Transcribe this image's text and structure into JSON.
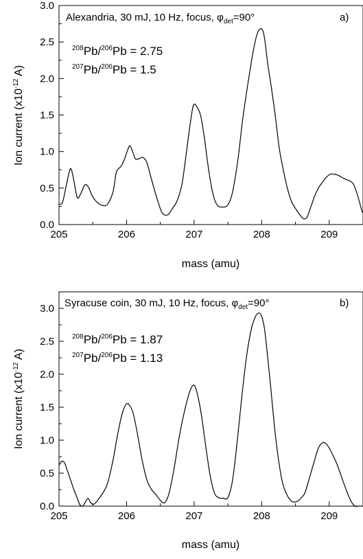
{
  "chart_data": [
    {
      "type": "line",
      "panel_label": "a)",
      "title": "Alexandria, 30 mJ, 10 Hz, focus, ",
      "title_phi": "φ",
      "title_phi_sub": "det",
      "title_phi_value": "=90°",
      "ratio1": {
        "num_mass": "208",
        "num_el": "Pb/",
        "den_mass": "206",
        "den_el": "Pb",
        "value": " = 2.75"
      },
      "ratio2": {
        "num_mass": "207",
        "num_el": "Pb/",
        "den_mass": "206",
        "den_el": "Pb",
        "value": " = 1.5"
      },
      "xlabel": "mass (amu)",
      "ylabel_main": "Ion current (x10",
      "ylabel_exp": "-12",
      "ylabel_unit": " A)",
      "xlim": [
        205,
        209.5
      ],
      "ylim": [
        0,
        3.0
      ],
      "xticks": [
        205,
        206,
        207,
        208,
        209
      ],
      "xtick_labels": [
        "205",
        "206",
        "207",
        "208",
        "209"
      ],
      "yticks": [
        0,
        0.5,
        1.0,
        1.5,
        2.0,
        2.5,
        3.0
      ],
      "ytick_labels": [
        "0.0",
        "0.5",
        "1.0",
        "1.5",
        "2.0",
        "2.5",
        "3.0"
      ],
      "series": [
        {
          "x": [
            205.0,
            205.05,
            205.1,
            205.15,
            205.18,
            205.22,
            205.27,
            205.32,
            205.38,
            205.43,
            205.5,
            205.57,
            205.65,
            205.72,
            205.8,
            205.85,
            205.92,
            205.97,
            206.02,
            206.05,
            206.09,
            206.13,
            206.18,
            206.24,
            206.3,
            206.36,
            206.42,
            206.47,
            206.52,
            206.57,
            206.62,
            206.68,
            206.75,
            206.82,
            206.88,
            206.93,
            206.97,
            207.0,
            207.05,
            207.1,
            207.15,
            207.2,
            207.25,
            207.3,
            207.35,
            207.42,
            207.5,
            207.57,
            207.65,
            207.72,
            207.8,
            207.87,
            207.93,
            207.98,
            208.02,
            208.05,
            208.09,
            208.14,
            208.2,
            208.26,
            208.32,
            208.38,
            208.44,
            208.5,
            208.56,
            208.62,
            208.67,
            208.72,
            208.78,
            208.84,
            208.9,
            208.96,
            209.02,
            209.07,
            209.12,
            209.18,
            209.24,
            209.3,
            209.36,
            209.42,
            209.48,
            209.5
          ],
          "y": [
            0.28,
            0.3,
            0.5,
            0.72,
            0.76,
            0.6,
            0.37,
            0.42,
            0.54,
            0.52,
            0.38,
            0.3,
            0.26,
            0.28,
            0.45,
            0.72,
            0.8,
            0.9,
            1.03,
            1.08,
            1.0,
            0.9,
            0.9,
            0.92,
            0.85,
            0.65,
            0.45,
            0.3,
            0.17,
            0.13,
            0.14,
            0.22,
            0.33,
            0.55,
            0.95,
            1.3,
            1.55,
            1.65,
            1.6,
            1.48,
            1.2,
            0.85,
            0.55,
            0.35,
            0.26,
            0.24,
            0.27,
            0.45,
            0.9,
            1.45,
            1.95,
            2.35,
            2.6,
            2.68,
            2.65,
            2.5,
            2.2,
            1.9,
            1.5,
            1.05,
            0.75,
            0.5,
            0.32,
            0.22,
            0.14,
            0.08,
            0.1,
            0.22,
            0.38,
            0.5,
            0.58,
            0.65,
            0.69,
            0.69,
            0.68,
            0.65,
            0.62,
            0.6,
            0.55,
            0.4,
            0.2,
            0.16
          ]
        }
      ]
    },
    {
      "type": "line",
      "panel_label": "b)",
      "title": "Syracuse coin, 30 mJ, 10 Hz, focus, ",
      "title_phi": "φ",
      "title_phi_sub": "det",
      "title_phi_value": "=90°",
      "ratio1": {
        "num_mass": "208",
        "num_el": "Pb/",
        "den_mass": "206",
        "den_el": "Pb",
        "value": " = 1.87"
      },
      "ratio2": {
        "num_mass": "207",
        "num_el": "Pb/",
        "den_mass": "206",
        "den_el": "Pb",
        "value": " = 1.13"
      },
      "xlabel": "mass (amu)",
      "ylabel_main": "Ion current (x10",
      "ylabel_exp": "-12",
      "ylabel_unit": " A)",
      "xlim": [
        205,
        209.5
      ],
      "ylim": [
        0,
        3.25
      ],
      "xticks": [
        205,
        206,
        207,
        208,
        209
      ],
      "xtick_labels": [
        "205",
        "206",
        "207",
        "208",
        "209"
      ],
      "yticks": [
        0,
        0.5,
        1.0,
        1.5,
        2.0,
        2.5,
        3.0
      ],
      "ytick_labels": [
        "0.0",
        "0.5",
        "1.0",
        "1.5",
        "2.0",
        "2.5",
        "3.0"
      ],
      "series": [
        {
          "x": [
            205.0,
            205.04,
            205.08,
            205.12,
            205.17,
            205.22,
            205.27,
            205.31,
            205.35,
            205.39,
            205.43,
            205.47,
            205.52,
            205.58,
            205.65,
            205.72,
            205.8,
            205.87,
            205.94,
            206.0,
            206.05,
            206.1,
            206.16,
            206.23,
            206.3,
            206.37,
            206.43,
            206.49,
            206.54,
            206.58,
            206.63,
            206.7,
            206.78,
            206.86,
            206.93,
            206.98,
            207.02,
            207.07,
            207.12,
            207.18,
            207.24,
            207.3,
            207.36,
            207.43,
            207.5,
            207.57,
            207.64,
            207.71,
            207.78,
            207.85,
            207.91,
            207.96,
            208.0,
            208.04,
            208.08,
            208.13,
            208.19,
            208.25,
            208.31,
            208.38,
            208.45,
            208.52,
            208.58,
            208.64,
            208.7,
            208.77,
            208.84,
            208.9,
            208.95,
            209.0,
            209.05,
            209.11,
            209.18,
            209.25,
            209.32,
            209.38,
            209.44,
            209.5
          ],
          "y": [
            0.62,
            0.68,
            0.66,
            0.55,
            0.4,
            0.25,
            0.12,
            0.02,
            0.0,
            0.06,
            0.12,
            0.05,
            0.03,
            0.1,
            0.2,
            0.35,
            0.7,
            1.1,
            1.42,
            1.55,
            1.52,
            1.4,
            1.1,
            0.7,
            0.4,
            0.25,
            0.18,
            0.1,
            0.05,
            0.07,
            0.2,
            0.55,
            1.05,
            1.45,
            1.72,
            1.83,
            1.8,
            1.6,
            1.3,
            0.85,
            0.45,
            0.2,
            0.13,
            0.12,
            0.13,
            0.4,
            1.0,
            1.7,
            2.3,
            2.7,
            2.88,
            2.93,
            2.88,
            2.7,
            2.35,
            1.85,
            1.2,
            0.7,
            0.35,
            0.16,
            0.07,
            0.07,
            0.12,
            0.2,
            0.4,
            0.65,
            0.88,
            0.96,
            0.95,
            0.88,
            0.78,
            0.65,
            0.45,
            0.25,
            0.08,
            0.0,
            0.0,
            0.0
          ]
        }
      ]
    }
  ]
}
